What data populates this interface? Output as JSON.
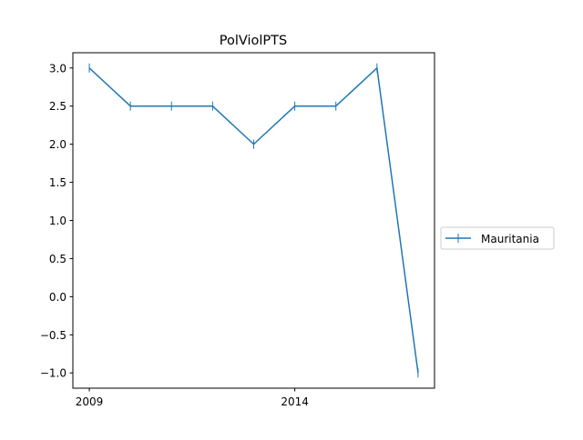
{
  "chart_data": {
    "type": "line",
    "title": "PolViolPTS",
    "xlabel": "",
    "ylabel": "",
    "x": [
      2009,
      2010,
      2011,
      2012,
      2013,
      2014,
      2015,
      2016,
      2017
    ],
    "x_ticks": [
      2009,
      2014
    ],
    "xlim": [
      2008.6,
      2017.4
    ],
    "ylim": [
      -1.2,
      3.2
    ],
    "y_ticks": [
      3.0,
      2.5,
      2.0,
      1.5,
      1.0,
      0.5,
      0.0,
      -0.5,
      -1.0
    ],
    "y_tick_labels": [
      "3.0",
      "2.5",
      "2.0",
      "1.5",
      "1.0",
      "0.5",
      "0.0",
      "−0.5",
      "−1.0"
    ],
    "grid": false,
    "legend_position": "center-right outside",
    "series": [
      {
        "name": "Mauritania",
        "color": "#1f77b4",
        "marker": "vertical-tick",
        "values": [
          3.0,
          2.5,
          2.5,
          2.5,
          2.0,
          2.5,
          2.5,
          3.0,
          -1.0
        ]
      }
    ]
  }
}
